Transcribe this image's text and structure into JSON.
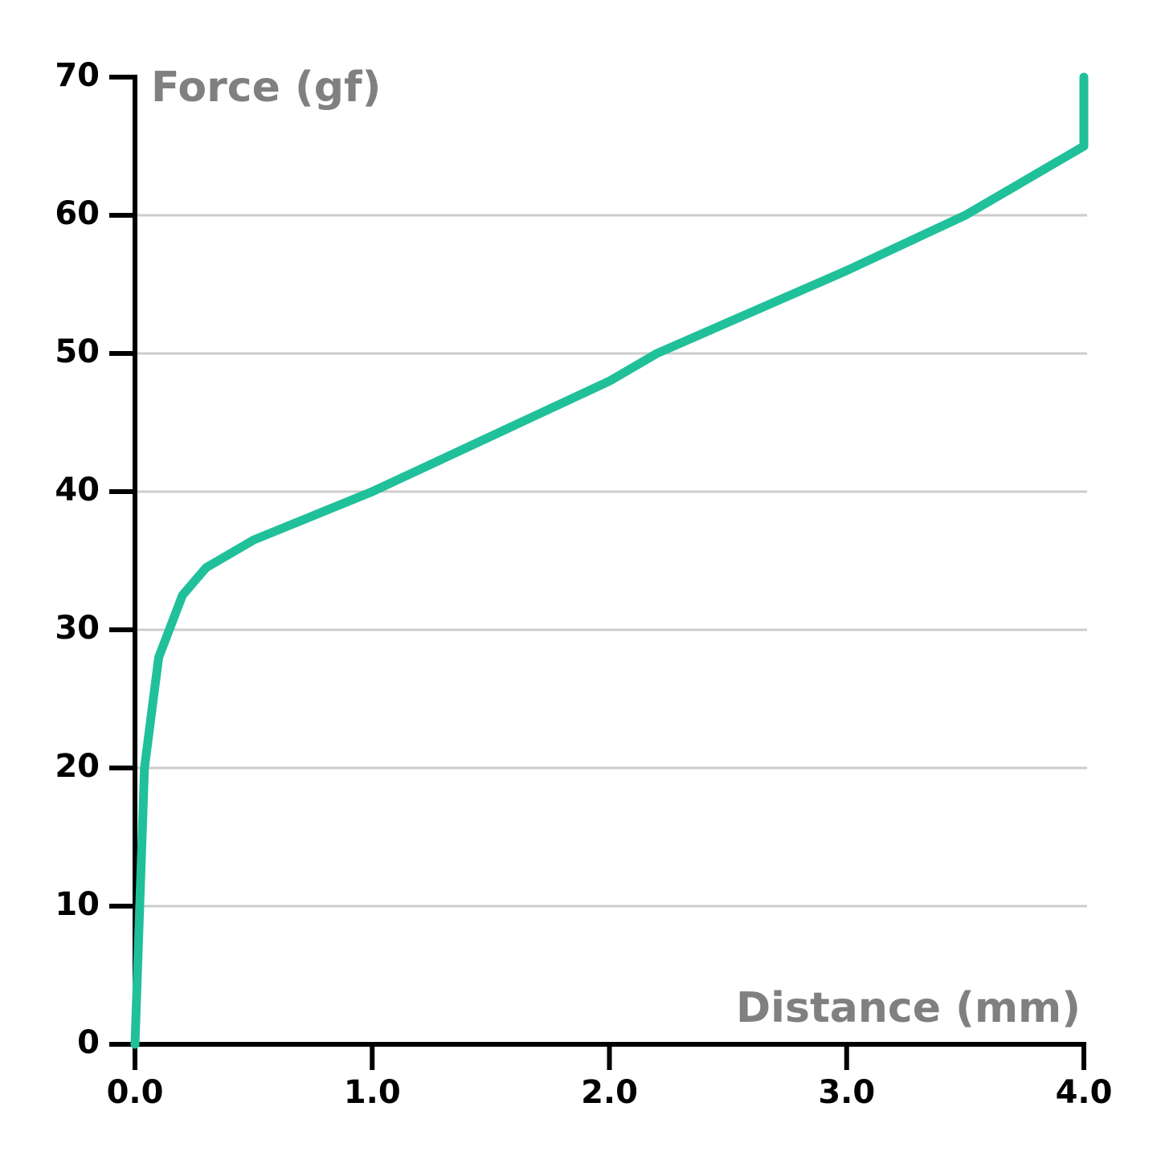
{
  "chart_data": {
    "type": "line",
    "x_label": "Distance (mm)",
    "y_label": "Force (gf)",
    "x": [
      0,
      0.02,
      0.04,
      0.1,
      0.2,
      0.3,
      0.5,
      1.0,
      2.0,
      2.2,
      3.0,
      3.5,
      4.0,
      4.0
    ],
    "series": [
      {
        "color": "#20c09a",
        "values": [
          0,
          10,
          20,
          28,
          32.5,
          34.5,
          36.5,
          40,
          48,
          50,
          56,
          60,
          65,
          70
        ]
      }
    ],
    "xlim": [
      0,
      4
    ],
    "xticks": [
      {
        "value": 0,
        "label": "0.0"
      },
      {
        "value": 1,
        "label": "1.0"
      },
      {
        "value": 2,
        "label": "2.0"
      },
      {
        "value": 3,
        "label": "3.0"
      },
      {
        "value": 4,
        "label": "4.0"
      }
    ],
    "ylim": [
      0,
      70
    ],
    "yticks": [
      0,
      10,
      20,
      30,
      40,
      50,
      60,
      70
    ],
    "grid": true
  }
}
